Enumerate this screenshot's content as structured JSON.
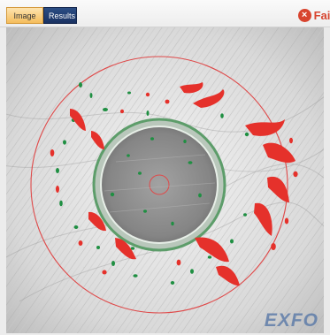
{
  "tabs": [
    {
      "label": "Image",
      "active": true
    },
    {
      "label": "Results",
      "active": false
    }
  ],
  "status": {
    "text": "Fail",
    "icon": "x-circle-icon",
    "color": "#d8442f"
  },
  "viewer": {
    "watermark": "EXFO",
    "colors": {
      "defect": "#e5312b",
      "debris": "#1f8f42",
      "ring": "#df4a4a",
      "cladding": "#b9c7bb",
      "core": "#8d8d8d"
    }
  }
}
